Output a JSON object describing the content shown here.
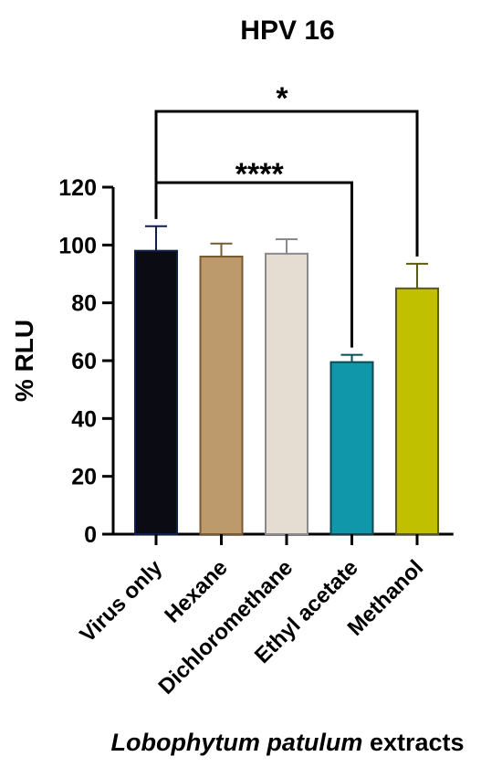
{
  "chart_data": {
    "type": "bar",
    "title": "HPV 16",
    "ylabel": "% RLU",
    "xlabel_italic": "Lobophytum patulum",
    "xlabel_rest": " extracts",
    "ylim": [
      0,
      120
    ],
    "yticks": [
      0,
      20,
      40,
      60,
      80,
      100,
      120
    ],
    "categories": [
      "Virus only",
      "Hexane",
      "Dichloromethane",
      "Ethyl acetate",
      "Methanol"
    ],
    "values": [
      98,
      96,
      97,
      59.5,
      85
    ],
    "errors": [
      8.5,
      4.5,
      5,
      2.5,
      8.5
    ],
    "colors": [
      "#0b0b14",
      "#bd9a6c",
      "#e6ddd2",
      "#1097aa",
      "#c0c000"
    ],
    "edge_colors": [
      "#0d1f4a",
      "#7a5a30",
      "#8a8a8a",
      "#0a4a55",
      "#5a5a10"
    ],
    "significance": [
      {
        "from": 0,
        "to": 4,
        "label": "*"
      },
      {
        "from": 0,
        "to": 3,
        "label": "****"
      }
    ]
  }
}
